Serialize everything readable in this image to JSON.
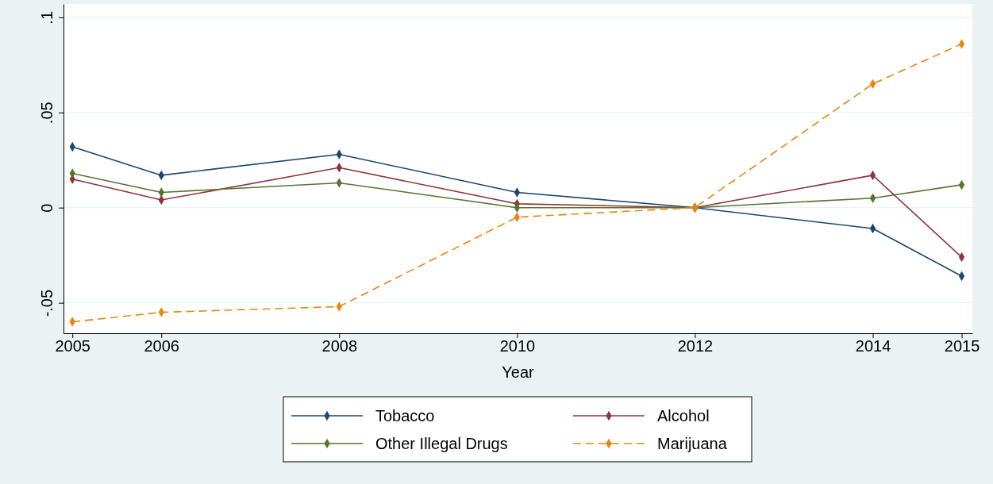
{
  "chart_data": {
    "type": "line",
    "xlabel": "Year",
    "x": [
      2005,
      2006,
      2008,
      2010,
      2012,
      2014,
      2015
    ],
    "xlim": [
      2004.9,
      2015.12
    ],
    "xticks": [
      2005,
      2006,
      2008,
      2010,
      2012,
      2014,
      2015
    ],
    "ylim": [
      -0.066,
      0.107
    ],
    "yticks": [
      {
        "value": -0.05,
        "label": "-.05"
      },
      0,
      {
        "value": 0.05,
        "label": ".05"
      },
      {
        "value": 0.1,
        "label": ".1"
      }
    ],
    "grid": "y",
    "legend": "bottom",
    "marker": "diamond",
    "series": [
      {
        "name": "Tobacco",
        "color": "#1a476f",
        "line_style": "solid",
        "values": [
          0.032,
          0.017,
          0.028,
          0.008,
          0,
          -0.011,
          -0.036
        ]
      },
      {
        "name": "Alcohol",
        "color": "#90353b",
        "line_style": "solid",
        "values": [
          0.015,
          0.004,
          0.021,
          0.002,
          0,
          0.017,
          -0.026
        ]
      },
      {
        "name": "Other Illegal Drugs",
        "color": "#55752f",
        "line_style": "solid",
        "values": [
          0.018,
          0.008,
          0.013,
          0.0,
          0,
          0.005,
          0.012
        ]
      },
      {
        "name": "Marijuana",
        "color": "#e8850b",
        "line_style": "dashed",
        "values": [
          -0.06,
          -0.055,
          -0.052,
          -0.005,
          0,
          0.065,
          0.086
        ]
      }
    ]
  }
}
